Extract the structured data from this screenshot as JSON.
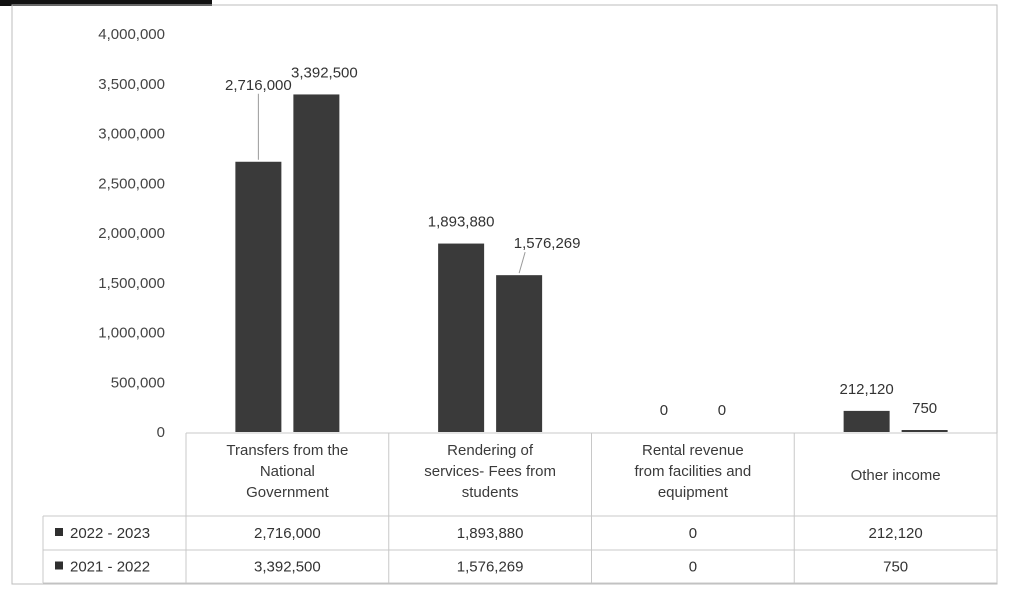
{
  "chart_data": {
    "type": "bar",
    "title": "",
    "xlabel": "",
    "ylabel": "",
    "ylim": [
      0,
      4000000
    ],
    "y_ticks": [
      "4,000,000",
      "3,500,000",
      "3,000,000",
      "2,500,000",
      "2,000,000",
      "1,500,000",
      "1,000,000",
      "500,000",
      "0"
    ],
    "y_tick_values": [
      4000000,
      3500000,
      3000000,
      2500000,
      2000000,
      1500000,
      1000000,
      500000,
      0
    ],
    "categories": [
      [
        "Transfers from the",
        "National",
        "Government"
      ],
      [
        "Rendering of",
        "services- Fees from",
        "students"
      ],
      [
        "Rental revenue",
        "from facilities and",
        "equipment"
      ],
      [
        "Other income"
      ]
    ],
    "series": [
      {
        "name": "2022 - 2023",
        "values": [
          2716000,
          1893880,
          0,
          212120
        ],
        "labels": [
          "2,716,000",
          "1,893,880",
          "0",
          "212,120"
        ]
      },
      {
        "name": "2021 - 2022",
        "values": [
          3392500,
          1576269,
          0,
          750
        ],
        "labels": [
          "3,392,500",
          "1,576,269",
          "0",
          "750"
        ]
      }
    ],
    "legend": "data-table-below",
    "grid": false,
    "bar_color": "#3a3a3a"
  }
}
